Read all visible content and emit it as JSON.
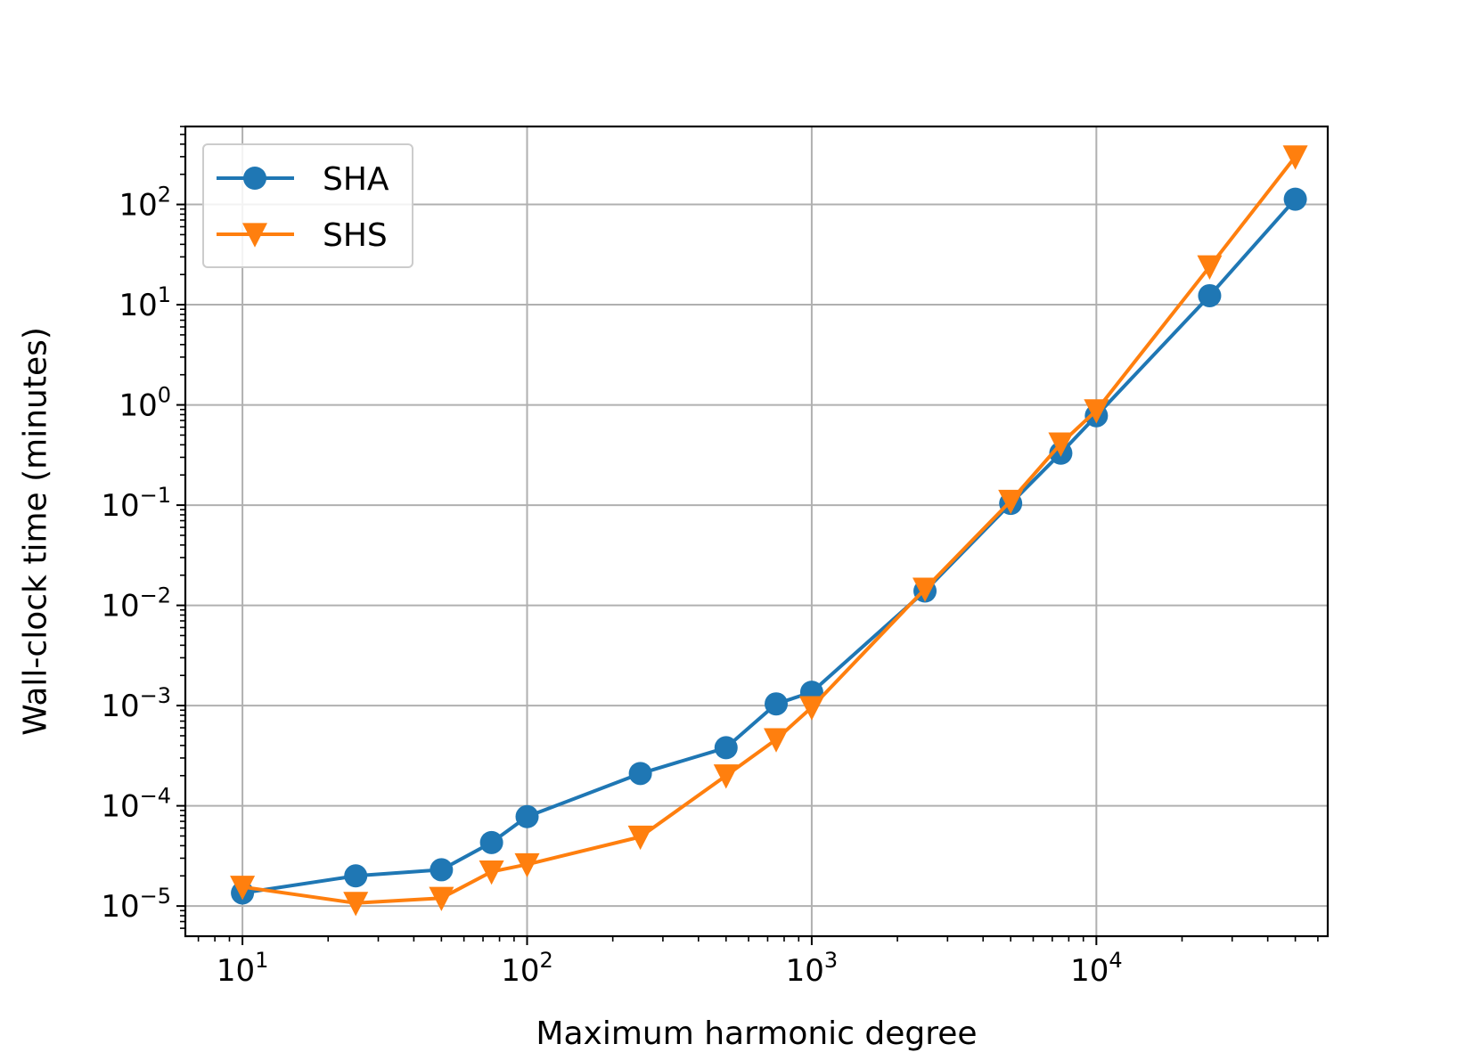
{
  "chart_data": {
    "type": "line",
    "title": "",
    "xlabel": "Maximum harmonic degree",
    "ylabel": "Wall-clock time (minutes)",
    "xscale": "log",
    "yscale": "log",
    "xlim": [
      6.3,
      65000
    ],
    "ylim": [
      5e-06,
      600
    ],
    "grid": true,
    "legend_position": "top-left",
    "x_ticks": [
      {
        "value": 10,
        "base": "10",
        "exp": "1"
      },
      {
        "value": 100,
        "base": "10",
        "exp": "2"
      },
      {
        "value": 1000,
        "base": "10",
        "exp": "3"
      },
      {
        "value": 10000,
        "base": "10",
        "exp": "4"
      }
    ],
    "y_ticks": [
      {
        "value": 1e-05,
        "base": "10",
        "exp": "−5"
      },
      {
        "value": 0.0001,
        "base": "10",
        "exp": "−4"
      },
      {
        "value": 0.001,
        "base": "10",
        "exp": "−3"
      },
      {
        "value": 0.01,
        "base": "10",
        "exp": "−2"
      },
      {
        "value": 0.1,
        "base": "10",
        "exp": "−1"
      },
      {
        "value": 1,
        "base": "10",
        "exp": "0"
      },
      {
        "value": 10,
        "base": "10",
        "exp": "1"
      },
      {
        "value": 100,
        "base": "10",
        "exp": "2"
      }
    ],
    "series": [
      {
        "name": "SHA",
        "color": "#1f77b4",
        "marker": "circle",
        "x": [
          10,
          25,
          50,
          75,
          100,
          250,
          500,
          750,
          1000,
          2500,
          5000,
          7500,
          10000,
          25000,
          50000
        ],
        "y": [
          1.35e-05,
          2e-05,
          2.3e-05,
          4.3e-05,
          7.8e-05,
          0.00021,
          0.00038,
          0.00104,
          0.00136,
          0.0139,
          0.104,
          0.33,
          0.78,
          12.3,
          113
        ]
      },
      {
        "name": "SHS",
        "color": "#ff7f0e",
        "marker": "triangle-down",
        "x": [
          10,
          25,
          50,
          75,
          100,
          250,
          500,
          750,
          1000,
          2500,
          5000,
          7500,
          10000,
          25000,
          50000
        ],
        "y": [
          1.55e-05,
          1.07e-05,
          1.2e-05,
          2.2e-05,
          2.6e-05,
          4.9e-05,
          0.0002,
          0.00046,
          0.00096,
          0.0146,
          0.11,
          0.41,
          0.88,
          24,
          300
        ]
      }
    ]
  }
}
